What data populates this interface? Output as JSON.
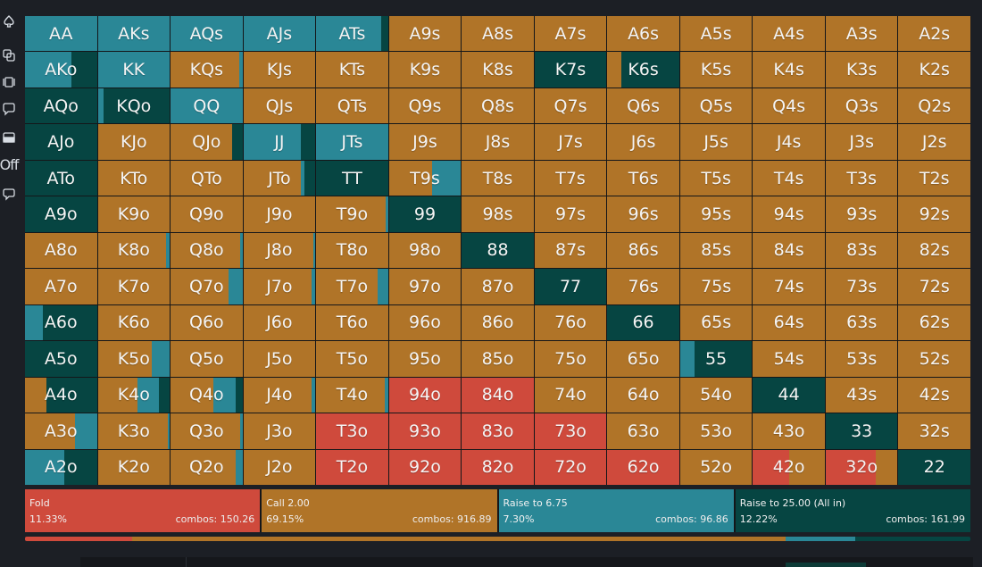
{
  "colors": {
    "fold": "#cf4a3c",
    "call": "#b07428",
    "raise": "#2a8796",
    "allin": "#064542",
    "text": "#f4f4f4"
  },
  "sidebar": {
    "items": [
      {
        "name": "spade-icon"
      },
      {
        "name": "copy-icon"
      },
      {
        "name": "card-stack-icon"
      },
      {
        "name": "comment-icon"
      },
      {
        "name": "panel-toggle-icon"
      },
      {
        "name": "off-toggle",
        "label": "Off"
      },
      {
        "name": "chat-icon"
      }
    ]
  },
  "grid": {
    "rows": [
      [
        "AA",
        "AKs",
        "AQs",
        "AJs",
        "ATs",
        "A9s",
        "A8s",
        "A7s",
        "A6s",
        "A5s",
        "A4s",
        "A3s",
        "A2s"
      ],
      [
        "AKo",
        "KK",
        "KQs",
        "KJs",
        "KTs",
        "K9s",
        "K8s",
        "K7s",
        "K6s",
        "K5s",
        "K4s",
        "K3s",
        "K2s"
      ],
      [
        "AQo",
        "KQo",
        "QQ",
        "QJs",
        "QTs",
        "Q9s",
        "Q8s",
        "Q7s",
        "Q6s",
        "Q5s",
        "Q4s",
        "Q3s",
        "Q2s"
      ],
      [
        "AJo",
        "KJo",
        "QJo",
        "JJ",
        "JTs",
        "J9s",
        "J8s",
        "J7s",
        "J6s",
        "J5s",
        "J4s",
        "J3s",
        "J2s"
      ],
      [
        "ATo",
        "KTo",
        "QTo",
        "JTo",
        "TT",
        "T9s",
        "T8s",
        "T7s",
        "T6s",
        "T5s",
        "T4s",
        "T3s",
        "T2s"
      ],
      [
        "A9o",
        "K9o",
        "Q9o",
        "J9o",
        "T9o",
        "99",
        "98s",
        "97s",
        "96s",
        "95s",
        "94s",
        "93s",
        "92s"
      ],
      [
        "A8o",
        "K8o",
        "Q8o",
        "J8o",
        "T8o",
        "98o",
        "88",
        "87s",
        "86s",
        "85s",
        "84s",
        "83s",
        "82s"
      ],
      [
        "A7o",
        "K7o",
        "Q7o",
        "J7o",
        "T7o",
        "97o",
        "87o",
        "77",
        "76s",
        "75s",
        "74s",
        "73s",
        "72s"
      ],
      [
        "A6o",
        "K6o",
        "Q6o",
        "J6o",
        "T6o",
        "96o",
        "86o",
        "76o",
        "66",
        "65s",
        "64s",
        "63s",
        "62s"
      ],
      [
        "A5o",
        "K5o",
        "Q5o",
        "J5o",
        "T5o",
        "95o",
        "85o",
        "75o",
        "65o",
        "55",
        "54s",
        "53s",
        "52s"
      ],
      [
        "A4o",
        "K4o",
        "Q4o",
        "J4o",
        "T4o",
        "94o",
        "84o",
        "74o",
        "64o",
        "54o",
        "44",
        "43s",
        "42s"
      ],
      [
        "A3o",
        "K3o",
        "Q3o",
        "J3o",
        "T3o",
        "93o",
        "83o",
        "73o",
        "63o",
        "53o",
        "43o",
        "33",
        "32s"
      ],
      [
        "A2o",
        "K2o",
        "Q2o",
        "J2o",
        "T2o",
        "92o",
        "82o",
        "72o",
        "62o",
        "52o",
        "42o",
        "32o",
        "22"
      ]
    ],
    "strategy": {
      "AA": {
        "raise": 1.0
      },
      "AKs": {
        "raise": 1.0
      },
      "AQs": {
        "raise": 1.0
      },
      "AJs": {
        "raise": 1.0
      },
      "ATs": {
        "raise": 0.9,
        "allin": 0.1
      },
      "AKo": {
        "raise": 0.65,
        "allin": 0.35
      },
      "KK": {
        "raise": 1.0
      },
      "KQs": {
        "call": 0.95,
        "raise": 0.05
      },
      "K7s": {
        "allin": 1.0
      },
      "K6s": {
        "call": 0.2,
        "allin": 0.8
      },
      "AQo": {
        "allin": 1.0
      },
      "KQo": {
        "raise": 0.08,
        "allin": 0.92
      },
      "QQ": {
        "raise": 1.0
      },
      "QJo": {
        "call": 0.85,
        "allin": 0.15
      },
      "AJo": {
        "allin": 1.0
      },
      "JJ": {
        "raise": 0.8,
        "allin": 0.2
      },
      "JTs": {
        "raise": 1.0
      },
      "ATo": {
        "allin": 1.0
      },
      "JTo": {
        "call": 0.8,
        "raise": 0.05,
        "allin": 0.15
      },
      "TT": {
        "allin": 1.0
      },
      "T9s": {
        "call": 0.6,
        "raise": 0.4
      },
      "A9o": {
        "allin": 1.0
      },
      "T9o": {
        "call": 0.97,
        "raise": 0.03
      },
      "99": {
        "allin": 1.0
      },
      "K8o": {
        "call": 0.95,
        "raise": 0.05
      },
      "Q8o": {
        "call": 0.97,
        "raise": 0.03
      },
      "J8o": {
        "call": 0.97,
        "raise": 0.03
      },
      "88": {
        "allin": 1.0
      },
      "Q7o": {
        "call": 0.8,
        "raise": 0.2
      },
      "J7o": {
        "call": 0.95,
        "raise": 0.05
      },
      "T7o": {
        "call": 0.85,
        "raise": 0.15
      },
      "77": {
        "allin": 1.0
      },
      "A6o": {
        "raise": 0.25,
        "allin": 0.75
      },
      "66": {
        "allin": 1.0
      },
      "A5o": {
        "allin": 1.0
      },
      "K5o": {
        "call": 0.75,
        "raise": 0.25
      },
      "55": {
        "raise": 0.2,
        "allin": 0.8
      },
      "A4o": {
        "call": 0.3,
        "allin": 0.7
      },
      "K4o": {
        "call": 0.55,
        "raise": 0.3,
        "allin": 0.15
      },
      "Q4o": {
        "call": 0.6,
        "raise": 0.3,
        "allin": 0.1
      },
      "J4o": {
        "call": 0.95,
        "raise": 0.05
      },
      "T4o": {
        "call": 0.95,
        "raise": 0.05
      },
      "94o": {
        "fold": 1.0
      },
      "84o": {
        "fold": 1.0
      },
      "44": {
        "allin": 1.0
      },
      "A3o": {
        "call": 0.7,
        "raise": 0.3
      },
      "K3o": {
        "call": 0.97,
        "raise": 0.03
      },
      "Q3o": {
        "call": 0.97,
        "raise": 0.03
      },
      "T3o": {
        "fold": 1.0
      },
      "93o": {
        "fold": 1.0
      },
      "83o": {
        "fold": 1.0
      },
      "73o": {
        "fold": 1.0
      },
      "33": {
        "allin": 1.0
      },
      "A2o": {
        "raise": 0.55,
        "allin": 0.45
      },
      "Q2o": {
        "call": 0.9,
        "raise": 0.1
      },
      "T2o": {
        "fold": 1.0
      },
      "92o": {
        "fold": 1.0
      },
      "82o": {
        "fold": 1.0
      },
      "72o": {
        "fold": 1.0
      },
      "62o": {
        "fold": 1.0
      },
      "42o": {
        "fold": 0.5,
        "call": 0.5
      },
      "32o": {
        "fold": 0.7,
        "call": 0.3
      },
      "22": {
        "allin": 1.0
      }
    }
  },
  "summary": {
    "actions": [
      {
        "key": "fold",
        "name": "fold-action",
        "label": "Fold",
        "percent": "11.33%",
        "combos": "combos: 150.26",
        "color": "#cf4a3c"
      },
      {
        "key": "call",
        "name": "call-action",
        "label": "Call 2.00",
        "percent": "69.15%",
        "combos": "combos: 916.89",
        "color": "#b07428"
      },
      {
        "key": "raise",
        "name": "raise-action",
        "label": "Raise to 6.75",
        "percent": "7.30%",
        "combos": "combos: 96.86",
        "color": "#2a8796"
      },
      {
        "key": "allin",
        "name": "allin-action",
        "label": "Raise to 25.00 (All in)",
        "percent": "12.22%",
        "combos": "combos: 161.99",
        "color": "#064542"
      }
    ],
    "frequency_bar": [
      {
        "key": "fold",
        "value": 0.1133
      },
      {
        "key": "call",
        "value": 0.6915
      },
      {
        "key": "raise",
        "value": 0.073
      },
      {
        "key": "allin",
        "value": 0.1222
      }
    ]
  }
}
